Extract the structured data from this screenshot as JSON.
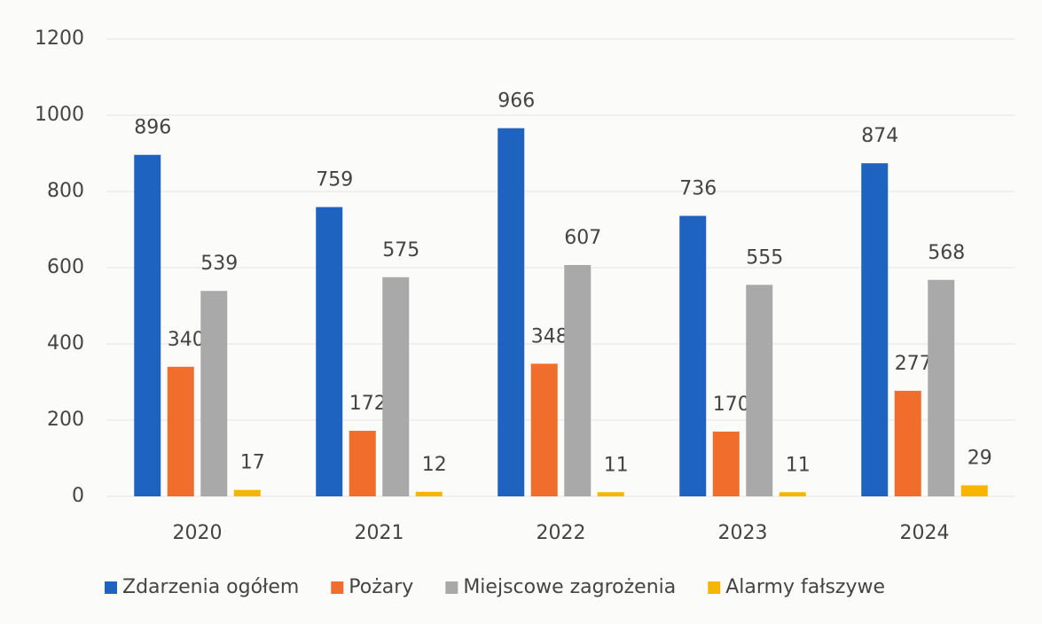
{
  "chart_data": {
    "type": "bar",
    "categories": [
      "2020",
      "2021",
      "2022",
      "2023",
      "2024"
    ],
    "series": [
      {
        "name": "Zdarzenia ogółem",
        "color": "#1f63c1",
        "values": [
          896,
          759,
          966,
          736,
          874
        ]
      },
      {
        "name": "Pożary",
        "color": "#f06d2c",
        "values": [
          340,
          172,
          348,
          170,
          277
        ]
      },
      {
        "name": "Miejscowe zagrożenia",
        "color": "#a9a9a9",
        "values": [
          539,
          575,
          607,
          555,
          568
        ]
      },
      {
        "name": "Alarmy fałszywe",
        "color": "#f7b500",
        "values": [
          17,
          12,
          11,
          11,
          29
        ]
      }
    ],
    "ylim": [
      0,
      1200
    ],
    "yticks": [
      0,
      200,
      400,
      600,
      800,
      1000,
      1200
    ],
    "grid": true,
    "legend": "bottom"
  }
}
